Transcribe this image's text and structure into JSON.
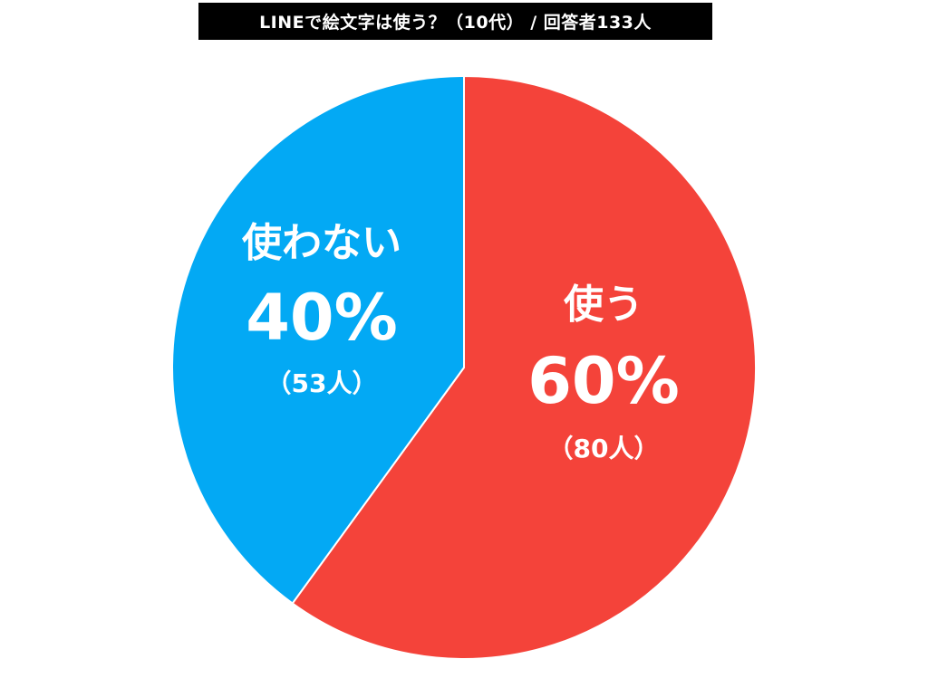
{
  "title": "LINEで絵文字は使う？（10代） / 回答者133人",
  "colors": {
    "use": "#F4433A",
    "not_use": "#03A9F4",
    "title_bg": "#000000",
    "title_fg": "#FFFFFF",
    "label_fg": "#FFFFFF"
  },
  "slices": [
    {
      "name": "使う",
      "percent_label": "60%",
      "count_label": "（80人）",
      "percent": 60,
      "count": 80,
      "color": "#F4433A"
    },
    {
      "name": "使わない",
      "percent_label": "40%",
      "count_label": "（53人）",
      "percent": 40,
      "count": 53,
      "color": "#03A9F4"
    }
  ],
  "chart_data": {
    "type": "pie",
    "title": "LINEで絵文字は使う？（10代） / 回答者133人",
    "categories": [
      "使う",
      "使わない"
    ],
    "values": [
      60,
      40
    ],
    "counts": [
      80,
      53
    ],
    "total_respondents": 133,
    "unit": "%",
    "colors": [
      "#F4433A",
      "#03A9F4"
    ],
    "start_angle": "12 o'clock, clockwise",
    "legend": "none (labels inside slices)"
  }
}
